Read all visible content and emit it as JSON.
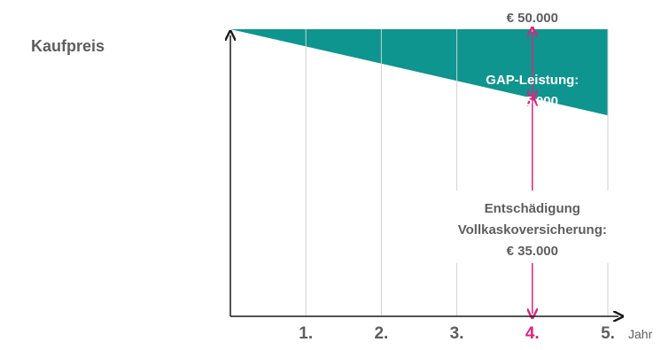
{
  "chart_data": {
    "type": "area",
    "ylabel": "Kaufpreis",
    "xlabel": "Jahr",
    "categories": [
      "1.",
      "2.",
      "3.",
      "4.",
      "5."
    ],
    "highlight_category": "4.",
    "series": [
      {
        "x": [
          0,
          1,
          2,
          3,
          4,
          5
        ],
        "y_top": [
          50000,
          50000,
          50000,
          50000,
          50000,
          50000
        ],
        "y_bottom": [
          50000,
          47000,
          44000,
          41000,
          38000,
          35000
        ]
      }
    ],
    "ylim": [
      0,
      52000
    ],
    "xlim": [
      0,
      5
    ],
    "annotations": {
      "top_value": "€ 50.000",
      "gap_label": "GAP-Leistung:",
      "gap_value": "€ 15.000",
      "comp_label_1": "Entschädigung",
      "comp_label_2": "Vollkaskoversicherung:",
      "comp_value": "€ 35.000"
    },
    "colors": {
      "area": "#0e958f",
      "axis": "#1a1a1a",
      "grid": "#cfcfcf",
      "highlight": "#e0227e",
      "text": "#5e5e5e",
      "annotation_text_on_area": "#ffffff"
    }
  }
}
